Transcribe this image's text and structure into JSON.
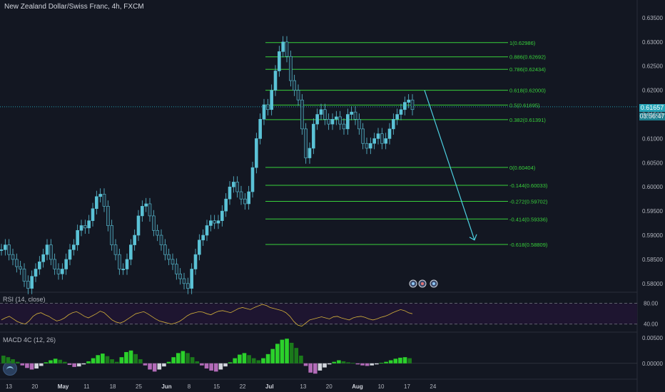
{
  "header": {
    "title": "New Zealand Dollar/Swiss Franc, 4h, FXCM"
  },
  "price_tag": {
    "value": "0.61657",
    "countdown": "03:56:47"
  },
  "colors": {
    "background": "#131722",
    "fib": "#38d13b",
    "arrow": "#4dd0e1",
    "candle": "#5bc2d6",
    "rsi": "#d4b13a",
    "macd_up": "#2bd12b",
    "macd_down": "#b36bb8",
    "price_line": "#26c6da"
  },
  "chart_data": [
    {
      "type": "line",
      "series_kind": "candlestick price",
      "price_axis": {
        "ticks": [
          "0.63500",
          "0.63000",
          "0.62500",
          "0.62000",
          "0.61500",
          "0.61000",
          "0.60500",
          "0.60000",
          "0.59500",
          "0.59000",
          "0.58500",
          "0.58000"
        ],
        "range": [
          0.5785,
          0.6375
        ]
      },
      "time_axis": {
        "ticks": [
          "13",
          "20",
          "May",
          "11",
          "18",
          "25",
          "Jun",
          "8",
          "15",
          "22",
          "Jul",
          "13",
          "20",
          "Aug",
          "10",
          "17",
          "24"
        ]
      },
      "close_path": [
        0.587,
        0.588,
        0.586,
        0.585,
        0.5835,
        0.583,
        0.5805,
        0.579,
        0.5815,
        0.583,
        0.5845,
        0.586,
        0.588,
        0.585,
        0.583,
        0.582,
        0.583,
        0.585,
        0.587,
        0.588,
        0.591,
        0.592,
        0.5915,
        0.593,
        0.5955,
        0.598,
        0.5985,
        0.596,
        0.592,
        0.588,
        0.586,
        0.583,
        0.583,
        0.585,
        0.588,
        0.59,
        0.594,
        0.596,
        0.5965,
        0.594,
        0.591,
        0.59,
        0.588,
        0.586,
        0.585,
        0.584,
        0.582,
        0.581,
        0.58,
        0.579,
        0.583,
        0.586,
        0.589,
        0.59,
        0.592,
        0.593,
        0.5925,
        0.593,
        0.595,
        0.5975,
        0.6,
        0.601,
        0.599,
        0.5975,
        0.5965,
        0.599,
        0.604,
        0.61,
        0.614,
        0.617,
        0.616,
        0.62,
        0.624,
        0.628,
        0.63,
        0.627,
        0.622,
        0.62,
        0.618,
        0.612,
        0.606,
        0.608,
        0.613,
        0.615,
        0.616,
        0.614,
        0.613,
        0.614,
        0.6145,
        0.613,
        0.612,
        0.615,
        0.6155,
        0.614,
        0.612,
        0.609,
        0.608,
        0.609,
        0.61,
        0.611,
        0.609,
        0.61,
        0.612,
        0.614,
        0.615,
        0.616,
        0.6175,
        0.618,
        0.616
      ],
      "fibonacci": [
        {
          "label": "1(0.62986)",
          "price": 0.62986
        },
        {
          "label": "0.886(0.62692)",
          "price": 0.62692
        },
        {
          "label": "0.786(0.62434)",
          "price": 0.62434
        },
        {
          "label": "0.618(0.62000)",
          "price": 0.62
        },
        {
          "label": "0.5(0.61695)",
          "price": 0.61695
        },
        {
          "label": "0.382(0.61391)",
          "price": 0.61391
        },
        {
          "label": "0(0.60404)",
          "price": 0.60404
        },
        {
          "label": "-0.144(0.60033)",
          "price": 0.60033
        },
        {
          "label": "-0.272(0.59702)",
          "price": 0.59702
        },
        {
          "label": "-0.414(0.59336)",
          "price": 0.59336
        },
        {
          "label": "-0.618(0.58809)",
          "price": 0.58809
        }
      ],
      "arrow": {
        "from": 0.62,
        "to": 0.589
      },
      "current_price": 0.61657
    },
    {
      "type": "line",
      "name": "RSI (14, close)",
      "levels": [
        "80.00",
        "40.00"
      ],
      "range": [
        30,
        85
      ],
      "values": [
        48,
        52,
        55,
        50,
        45,
        42,
        40,
        46,
        55,
        60,
        62,
        58,
        55,
        50,
        46,
        48,
        52,
        58,
        62,
        64,
        60,
        55,
        52,
        56,
        60,
        65,
        62,
        55,
        48,
        44,
        42,
        45,
        50,
        55,
        60,
        62,
        64,
        60,
        55,
        50,
        46,
        44,
        42,
        40,
        42,
        45,
        50,
        56,
        60,
        62,
        64,
        63,
        60,
        58,
        62,
        65,
        66,
        64,
        62,
        66,
        70,
        72,
        70,
        68,
        72,
        75,
        78,
        76,
        72,
        70,
        68,
        66,
        62,
        55,
        45,
        38,
        36,
        42,
        48,
        50,
        52,
        54,
        52,
        50,
        54,
        55,
        52,
        50,
        48,
        52,
        54,
        55,
        53,
        50,
        48,
        50,
        53,
        55,
        58,
        62,
        65,
        68,
        66,
        62,
        60
      ]
    },
    {
      "type": "bar",
      "name": "MACD 4C (12, 26)",
      "axis_ticks": [
        "0.00500",
        "0.00000"
      ],
      "range": [
        -0.0028,
        0.0058
      ],
      "values": [
        0.0015,
        0.0012,
        0.0008,
        0.0003,
        -0.0004,
        -0.0009,
        -0.0012,
        -0.001,
        -0.0005,
        0.0002,
        0.0006,
        0.0009,
        0.0007,
        0.0003,
        -0.0003,
        -0.0007,
        -0.0006,
        -0.0002,
        0.0004,
        0.001,
        0.0016,
        0.0019,
        0.0014,
        0.0008,
        0.0003,
        0.0012,
        0.0022,
        0.0025,
        0.0018,
        0.0008,
        -0.0004,
        -0.0012,
        -0.0016,
        -0.0012,
        -0.0006,
        0.0003,
        0.0012,
        0.002,
        0.0024,
        0.002,
        0.0012,
        0.0004,
        -0.0004,
        -0.001,
        -0.0014,
        -0.0016,
        -0.0012,
        -0.0006,
        0.0002,
        0.001,
        0.0017,
        0.002,
        0.0016,
        0.001,
        0.0006,
        0.001,
        0.0018,
        0.0028,
        0.0038,
        0.0046,
        0.0048,
        0.004,
        0.003,
        0.0015,
        -0.0005,
        -0.0018,
        -0.002,
        -0.0014,
        -0.0008,
        -0.0002,
        0.0003,
        0.0006,
        0.0004,
        0.0002,
        0.0001,
        -0.0002,
        -0.0004,
        -0.0005,
        -0.0004,
        -0.0002,
        0.0001,
        0.0003,
        0.0006,
        0.0009,
        0.0011,
        0.0012,
        0.001
      ]
    }
  ]
}
